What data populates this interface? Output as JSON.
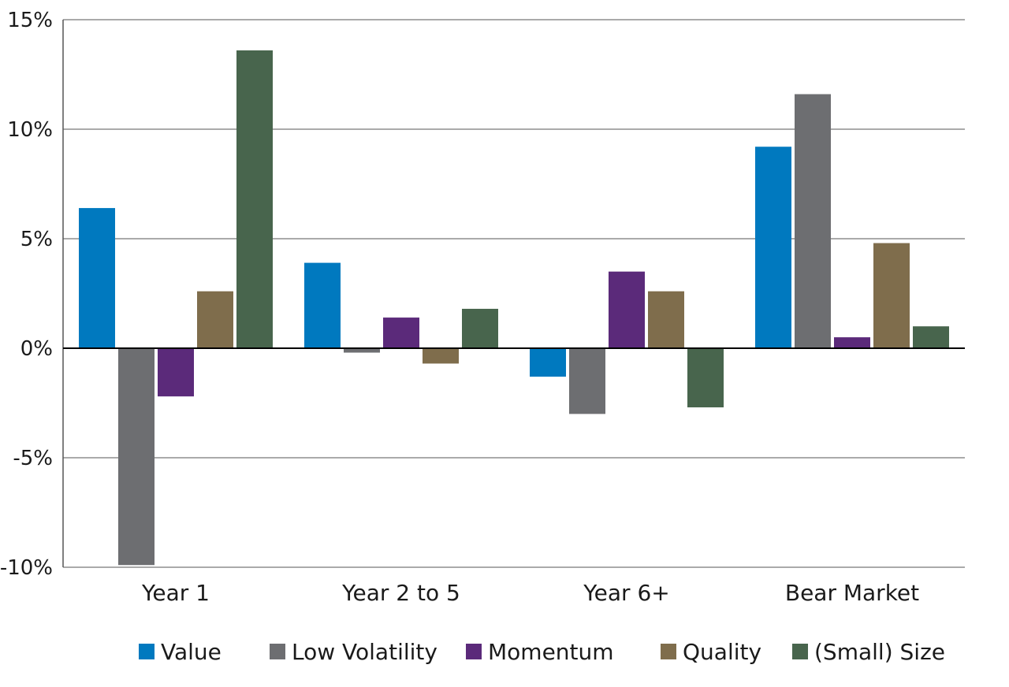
{
  "chart_data": {
    "type": "bar",
    "title": "",
    "xlabel": "",
    "ylabel": "",
    "ylim": [
      -10,
      15
    ],
    "yticks": [
      15,
      10,
      5,
      0,
      -5,
      -10
    ],
    "ytick_labels": [
      "15%",
      "10%",
      "5%",
      "0%",
      "-5%",
      "-10%"
    ],
    "grid": true,
    "legend_position": "bottom",
    "categories": [
      "Year 1",
      "Year 2 to 5",
      "Year 6+",
      "Bear Market"
    ],
    "series": [
      {
        "name": "Value",
        "color": "#0079BF",
        "values": [
          6.4,
          3.9,
          -1.3,
          9.2
        ]
      },
      {
        "name": "Low Volatility",
        "color": "#6D6E71",
        "values": [
          -9.9,
          -0.2,
          -3.0,
          11.6
        ]
      },
      {
        "name": "Momentum",
        "color": "#5B2A7A",
        "values": [
          -2.2,
          1.4,
          3.5,
          0.5
        ]
      },
      {
        "name": "Quality",
        "color": "#7F6D4C",
        "values": [
          2.6,
          -0.7,
          2.6,
          4.8
        ]
      },
      {
        "name": "(Small) Size",
        "color": "#48654D",
        "values": [
          13.6,
          1.8,
          -2.7,
          1.0
        ]
      }
    ]
  }
}
